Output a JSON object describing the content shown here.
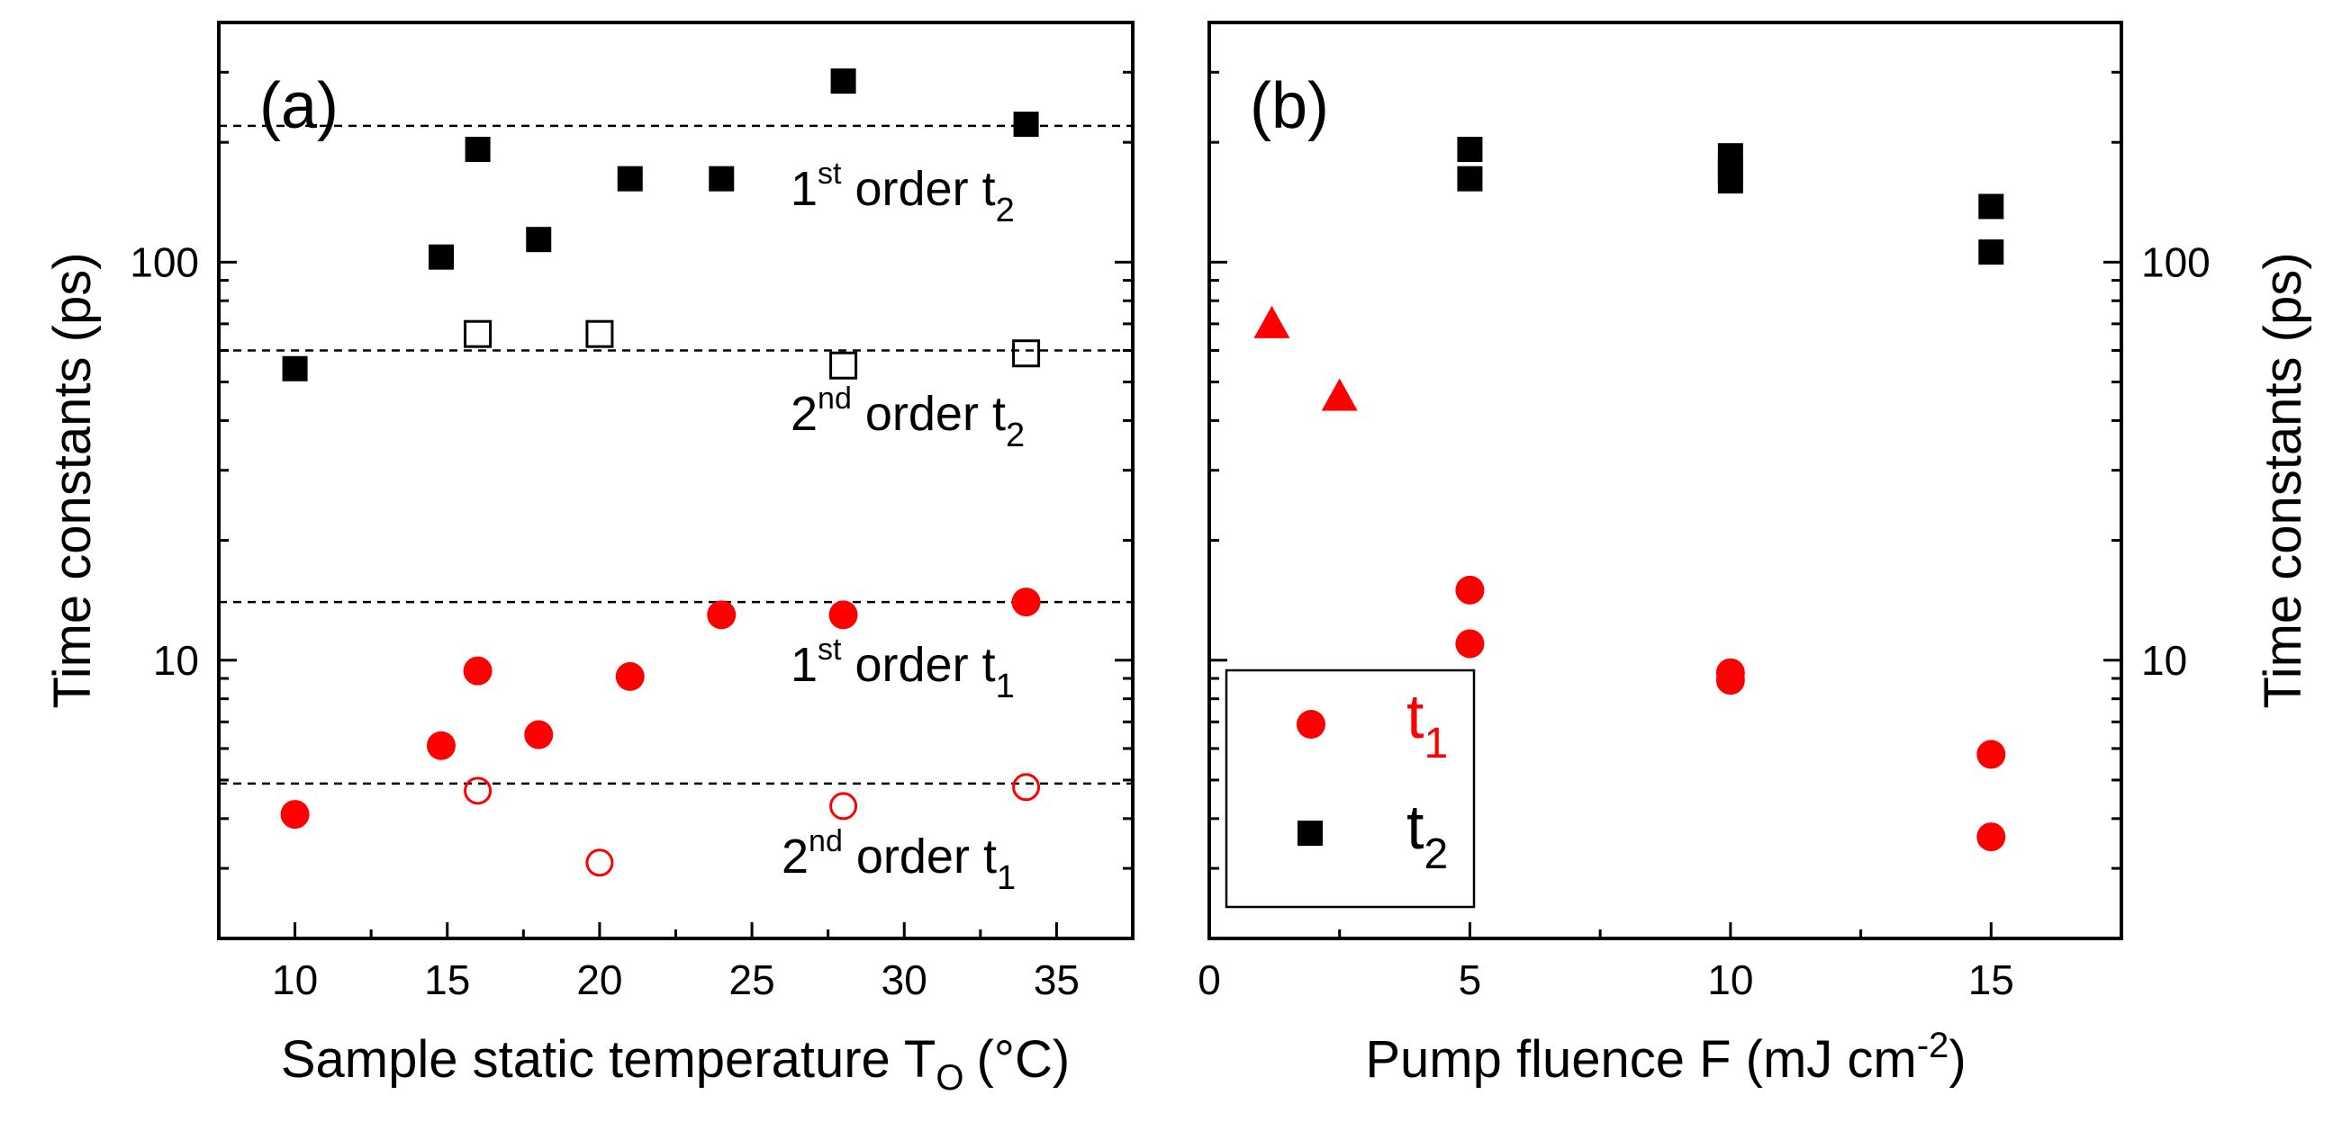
{
  "chart_data": [
    {
      "panel_label": "(a)",
      "type": "scatter",
      "xlabel": "Sample static temperature T",
      "xlabel_sub": "O",
      "xlabel_unit": "(°C)",
      "ylabel": "Time constants (ps)",
      "xlim": [
        7.5,
        37.5
      ],
      "ylim": [
        2,
        400
      ],
      "yscale": "log",
      "xticks": [
        10,
        15,
        20,
        25,
        30,
        35
      ],
      "yticks": [
        10,
        100
      ],
      "colors": {
        "red": "#ff0000",
        "black": "#000000"
      },
      "reference_lines": [
        {
          "y": 220,
          "label_pre": "1",
          "label_sup": "st",
          "label_mid": " order  t",
          "label_sub": "2"
        },
        {
          "y": 60,
          "label_pre": "2",
          "label_sup": "nd",
          "label_mid": " order  t",
          "label_sub": "2"
        },
        {
          "y": 14,
          "label_pre": "1",
          "label_sup": "st",
          "label_mid": " order  t",
          "label_sub": "1"
        },
        {
          "y": 4.9,
          "label_pre": "2",
          "label_sup": "nd",
          "label_mid": " order  t",
          "label_sub": "1"
        }
      ],
      "series": [
        {
          "name": "1st order t2",
          "marker": "square",
          "filled": true,
          "color": "#000000",
          "x": [
            10,
            14.8,
            16,
            18,
            21,
            24,
            28,
            34
          ],
          "y": [
            54,
            103,
            192,
            114,
            162,
            162,
            285,
            222
          ]
        },
        {
          "name": "2nd order t2",
          "marker": "square",
          "filled": false,
          "color": "#000000",
          "x": [
            16,
            20,
            28,
            34
          ],
          "y": [
            66,
            66,
            55,
            59
          ]
        },
        {
          "name": "1st order t1",
          "marker": "circle",
          "filled": true,
          "color": "#ff0000",
          "x": [
            10,
            14.8,
            16,
            18,
            21,
            24,
            28,
            34
          ],
          "y": [
            4.1,
            6.1,
            9.4,
            6.5,
            9.1,
            13,
            13,
            14
          ]
        },
        {
          "name": "2nd order t1",
          "marker": "circle",
          "filled": false,
          "color": "#ff0000",
          "x": [
            16,
            20,
            28,
            34
          ],
          "y": [
            4.7,
            3.1,
            4.3,
            4.8
          ]
        }
      ]
    },
    {
      "panel_label": "(b)",
      "type": "scatter",
      "xlabel": "Pump fluence F ",
      "xlabel_unit_pre": "(mJ cm",
      "xlabel_unit_sup": "-2",
      "xlabel_unit_post": ")",
      "ylabel": "Time constants (ps)",
      "xlim": [
        0,
        17.5
      ],
      "ylim": [
        2,
        400
      ],
      "yscale": "log",
      "xticks": [
        0,
        5,
        10,
        15
      ],
      "yticks": [
        10,
        100
      ],
      "legend": [
        {
          "symbol": "t",
          "sub": "1",
          "marker": "circle",
          "color": "#ff0000"
        },
        {
          "symbol": "t",
          "sub": "2",
          "marker": "square",
          "color": "#000000"
        }
      ],
      "series": [
        {
          "name": "t2",
          "marker": "square",
          "filled": true,
          "color": "#000000",
          "x": [
            5,
            5,
            10,
            10,
            10,
            15,
            15
          ],
          "y": [
            192,
            162,
            185,
            170,
            160,
            138,
            106
          ]
        },
        {
          "name": "t1",
          "marker": "circle",
          "filled": true,
          "color": "#ff0000",
          "x": [
            5,
            5,
            10,
            10,
            15,
            15
          ],
          "y": [
            15,
            11,
            9.3,
            8.9,
            5.8,
            3.6
          ]
        },
        {
          "name": "t1 (triangle)",
          "marker": "triangle",
          "filled": true,
          "color": "#ff0000",
          "x": [
            1.2,
            2.5
          ],
          "y": [
            70,
            46
          ]
        }
      ]
    }
  ]
}
